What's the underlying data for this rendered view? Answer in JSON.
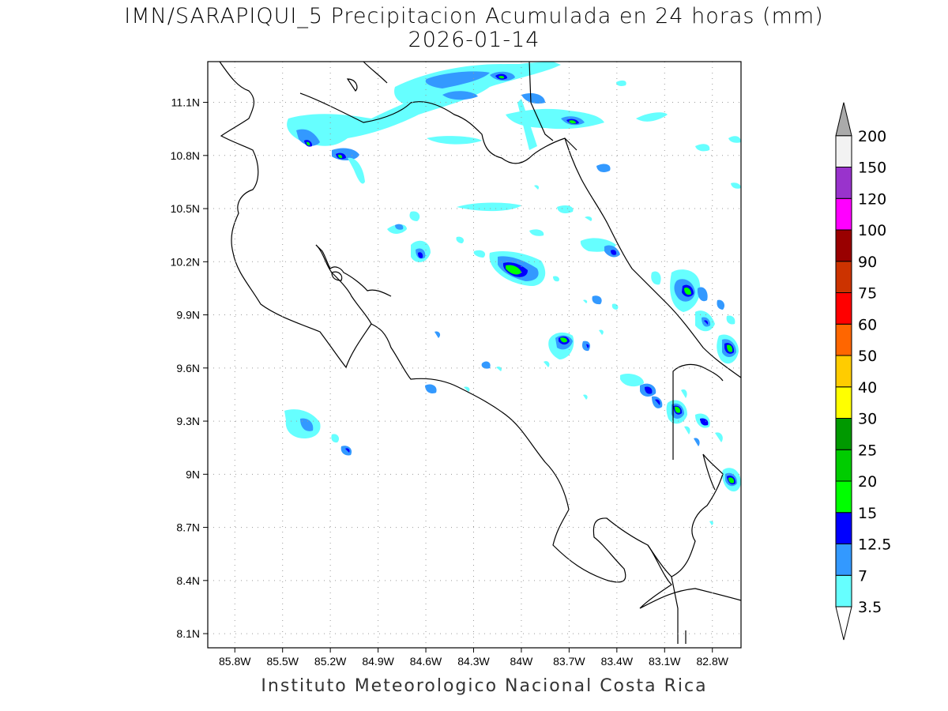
{
  "title_line1": "IMN/SARAPIQUI_5 Precipitacion Acumulada en 24 horas (mm)",
  "title_line2": "2026-01-14",
  "footer": "Instituto Meteorologico Nacional Costa Rica",
  "map": {
    "lon_range": [
      -85.97,
      -82.62
    ],
    "lat_range": [
      8.02,
      11.33
    ],
    "lon_ticks": [
      "85.8W",
      "85.5W",
      "85.2W",
      "84.9W",
      "84.6W",
      "84.3W",
      "84W",
      "83.7W",
      "83.4W",
      "83.1W",
      "82.8W"
    ],
    "lat_ticks": [
      "11.1N",
      "10.8N",
      "10.5N",
      "10.2N",
      "9.9N",
      "9.6N",
      "9.3N",
      "9N",
      "8.7N",
      "8.4N",
      "8.1N"
    ],
    "grid": "dotted"
  },
  "colorbar": {
    "levels": [
      "3.5",
      "7",
      "12.5",
      "15",
      "20",
      "25",
      "30",
      "40",
      "50",
      "60",
      "75",
      "90",
      "100",
      "120",
      "150",
      "200"
    ],
    "colors": [
      "#66ffff",
      "#3399ff",
      "#0000ff",
      "#00ff00",
      "#00cc00",
      "#009900",
      "#ffff00",
      "#ffcc00",
      "#ff6600",
      "#ff0000",
      "#cc3300",
      "#990000",
      "#ff00ff",
      "#9933cc",
      "#f2f2f2",
      "#aaaaaa"
    ]
  }
}
